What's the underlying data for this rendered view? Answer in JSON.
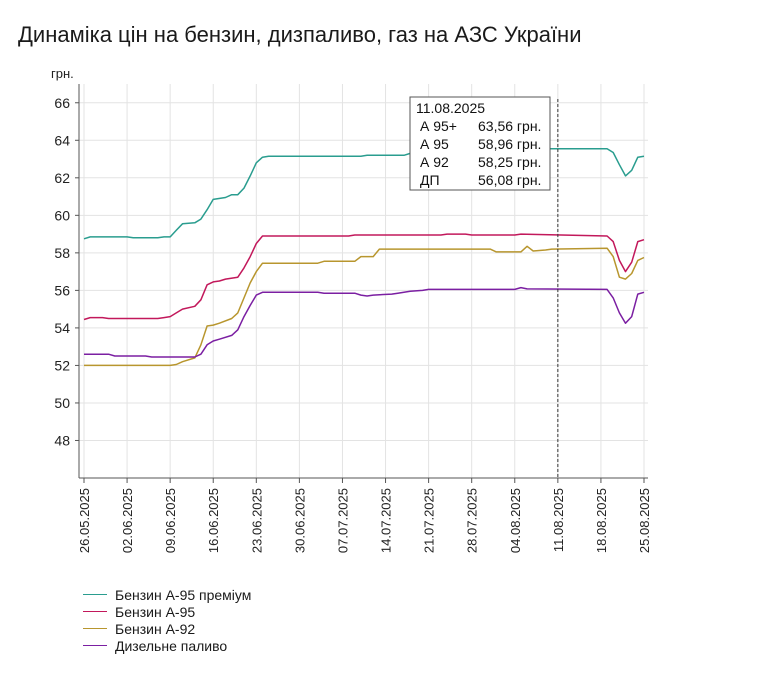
{
  "title": "Динаміка цін на бензин, дизпаливо, газ на АЗС України",
  "chart_data": {
    "type": "line",
    "ylabel": "грн.",
    "ylim": [
      46,
      67
    ],
    "yticks": [
      48,
      50,
      52,
      54,
      56,
      58,
      60,
      62,
      64,
      66
    ],
    "xticks": [
      "26.05.2025",
      "02.06.2025",
      "09.06.2025",
      "16.06.2025",
      "23.06.2025",
      "30.06.2025",
      "07.07.2025",
      "14.07.2025",
      "21.07.2025",
      "28.07.2025",
      "04.08.2025",
      "11.08.2025",
      "18.08.2025",
      "25.08.2025"
    ],
    "x_range": [
      0,
      91
    ],
    "grid": true,
    "series": [
      {
        "name": "Бензин А-95 преміум",
        "color": "#2a9d8f",
        "points": [
          [
            0,
            58.75
          ],
          [
            1,
            58.85
          ],
          [
            7,
            58.85
          ],
          [
            8,
            58.8
          ],
          [
            12,
            58.8
          ],
          [
            13,
            58.85
          ],
          [
            14,
            58.85
          ],
          [
            15,
            59.2
          ],
          [
            16,
            59.55
          ],
          [
            18,
            59.6
          ],
          [
            19,
            59.8
          ],
          [
            20,
            60.3
          ],
          [
            21,
            60.85
          ],
          [
            23,
            60.95
          ],
          [
            24,
            61.1
          ],
          [
            25,
            61.1
          ],
          [
            26,
            61.45
          ],
          [
            27,
            62.1
          ],
          [
            28,
            62.8
          ],
          [
            29,
            63.1
          ],
          [
            30,
            63.15
          ],
          [
            45,
            63.15
          ],
          [
            46,
            63.2
          ],
          [
            52,
            63.2
          ],
          [
            53,
            63.3
          ],
          [
            56,
            63.35
          ],
          [
            57,
            63.45
          ],
          [
            58,
            63.5
          ],
          [
            60,
            63.55
          ],
          [
            91,
            63.56
          ]
        ]
      },
      {
        "name": "Бензин А-95",
        "color": "#c2185b",
        "points": [
          [
            0,
            54.45
          ],
          [
            1,
            54.55
          ],
          [
            3,
            54.55
          ],
          [
            4,
            54.5
          ],
          [
            12,
            54.5
          ],
          [
            13,
            54.55
          ],
          [
            14,
            54.6
          ],
          [
            15,
            54.8
          ],
          [
            16,
            55.0
          ],
          [
            18,
            55.15
          ],
          [
            19,
            55.5
          ],
          [
            20,
            56.3
          ],
          [
            21,
            56.45
          ],
          [
            22,
            56.5
          ],
          [
            23,
            56.6
          ],
          [
            25,
            56.7
          ],
          [
            26,
            57.2
          ],
          [
            27,
            57.8
          ],
          [
            28,
            58.5
          ],
          [
            29,
            58.9
          ],
          [
            43,
            58.9
          ],
          [
            44,
            58.95
          ],
          [
            58,
            58.95
          ],
          [
            59,
            59.0
          ],
          [
            62,
            59.0
          ],
          [
            63,
            58.95
          ],
          [
            70,
            58.95
          ],
          [
            71,
            59.0
          ],
          [
            91,
            58.96
          ]
        ]
      },
      {
        "name": "Бензин А-92",
        "color": "#b8962e",
        "points": [
          [
            0,
            52.0
          ],
          [
            14,
            52.0
          ],
          [
            15,
            52.05
          ],
          [
            16,
            52.2
          ],
          [
            18,
            52.4
          ],
          [
            19,
            53.1
          ],
          [
            20,
            54.1
          ],
          [
            21,
            54.15
          ],
          [
            22,
            54.25
          ],
          [
            24,
            54.5
          ],
          [
            25,
            54.8
          ],
          [
            26,
            55.6
          ],
          [
            27,
            56.4
          ],
          [
            28,
            57.0
          ],
          [
            29,
            57.45
          ],
          [
            38,
            57.45
          ],
          [
            39,
            57.55
          ],
          [
            44,
            57.55
          ],
          [
            45,
            57.8
          ],
          [
            47,
            57.8
          ],
          [
            48,
            58.2
          ],
          [
            66,
            58.2
          ],
          [
            67,
            58.05
          ],
          [
            71,
            58.05
          ],
          [
            72,
            58.35
          ],
          [
            73,
            58.1
          ],
          [
            75,
            58.15
          ],
          [
            76,
            58.2
          ],
          [
            91,
            58.25
          ]
        ]
      },
      {
        "name": "Дизельне паливо",
        "color": "#7b1fa2",
        "points": [
          [
            0,
            52.6
          ],
          [
            4,
            52.6
          ],
          [
            5,
            52.5
          ],
          [
            10,
            52.5
          ],
          [
            11,
            52.45
          ],
          [
            18,
            52.45
          ],
          [
            19,
            52.6
          ],
          [
            20,
            53.1
          ],
          [
            21,
            53.3
          ],
          [
            22,
            53.4
          ],
          [
            24,
            53.6
          ],
          [
            25,
            53.9
          ],
          [
            26,
            54.6
          ],
          [
            27,
            55.2
          ],
          [
            28,
            55.75
          ],
          [
            29,
            55.9
          ],
          [
            38,
            55.9
          ],
          [
            39,
            55.85
          ],
          [
            44,
            55.85
          ],
          [
            45,
            55.75
          ],
          [
            46,
            55.7
          ],
          [
            47,
            55.75
          ],
          [
            50,
            55.8
          ],
          [
            51,
            55.85
          ],
          [
            52,
            55.9
          ],
          [
            53,
            55.95
          ],
          [
            55,
            56.0
          ],
          [
            56,
            56.05
          ],
          [
            70,
            56.05
          ],
          [
            71,
            56.15
          ],
          [
            72,
            56.08
          ],
          [
            91,
            56.08
          ]
        ]
      }
    ],
    "tail": [
      {
        "name": "Бензин А-95 преміум",
        "points": [
          [
            85,
            63.55
          ],
          [
            86,
            63.35
          ],
          [
            87,
            62.7
          ],
          [
            88,
            62.1
          ],
          [
            89,
            62.4
          ],
          [
            90,
            63.1
          ],
          [
            91,
            63.15
          ]
        ]
      },
      {
        "name": "Бензин А-95",
        "points": [
          [
            85,
            58.9
          ],
          [
            86,
            58.6
          ],
          [
            87,
            57.6
          ],
          [
            88,
            57.0
          ],
          [
            89,
            57.5
          ],
          [
            90,
            58.6
          ],
          [
            91,
            58.7
          ]
        ]
      },
      {
        "name": "Бензин А-92",
        "points": [
          [
            85,
            58.25
          ],
          [
            86,
            57.8
          ],
          [
            87,
            56.7
          ],
          [
            88,
            56.6
          ],
          [
            89,
            56.9
          ],
          [
            90,
            57.6
          ],
          [
            91,
            57.75
          ]
        ]
      },
      {
        "name": "Дизельне паливо",
        "points": [
          [
            85,
            56.05
          ],
          [
            86,
            55.6
          ],
          [
            87,
            54.8
          ],
          [
            88,
            54.25
          ],
          [
            89,
            54.6
          ],
          [
            90,
            55.8
          ],
          [
            91,
            55.9
          ]
        ]
      }
    ],
    "tooltip": {
      "date": "11.08.2025",
      "x": 77,
      "rows": [
        {
          "label": "А 95+",
          "value": "63,56 грн."
        },
        {
          "label": "А 95",
          "value": "58,96 грн."
        },
        {
          "label": "А 92",
          "value": "58,25 грн."
        },
        {
          "label": "ДП",
          "value": "56,08 грн."
        }
      ]
    }
  }
}
